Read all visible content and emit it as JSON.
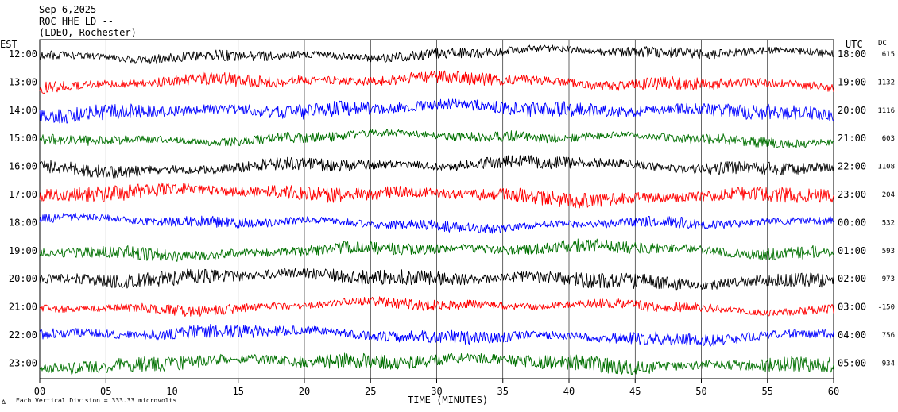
{
  "header": {
    "date": "Sep 6,2025",
    "station": "ROC HHE LD --",
    "location": "(LDEO, Rochester)"
  },
  "left_axis_label": "EST",
  "right_axis_label": "UTC",
  "dc_label": "DC",
  "footer": {
    "scale_note": "Each Vertical Division =  333.33 microvolts",
    "corner_mark": "∆"
  },
  "colors": {
    "trace_cycle": [
      "#000000",
      "#ff0000",
      "#0000ff",
      "#007000"
    ],
    "grid": "#000000",
    "background": "#ffffff"
  },
  "chart_data": {
    "type": "line",
    "title": "ROC HHE LD --",
    "xlabel": "TIME (MINUTES)",
    "ylabel": "",
    "x_ticks": [
      "00",
      "05",
      "10",
      "15",
      "20",
      "25",
      "30",
      "35",
      "40",
      "45",
      "50",
      "55",
      "60"
    ],
    "xlim": [
      0,
      60
    ],
    "series": [
      {
        "est": "12:00",
        "utc": "18:00",
        "dc": "615",
        "color": "#000000"
      },
      {
        "est": "13:00",
        "utc": "19:00",
        "dc": "1132",
        "color": "#ff0000"
      },
      {
        "est": "14:00",
        "utc": "20:00",
        "dc": "1116",
        "color": "#0000ff"
      },
      {
        "est": "15:00",
        "utc": "21:00",
        "dc": "603",
        "color": "#007000"
      },
      {
        "est": "16:00",
        "utc": "22:00",
        "dc": "1108",
        "color": "#000000"
      },
      {
        "est": "17:00",
        "utc": "23:00",
        "dc": "204",
        "color": "#ff0000"
      },
      {
        "est": "18:00",
        "utc": "00:00",
        "dc": "532",
        "color": "#0000ff"
      },
      {
        "est": "19:00",
        "utc": "01:00",
        "dc": "593",
        "color": "#007000"
      },
      {
        "est": "20:00",
        "utc": "02:00",
        "dc": "973",
        "color": "#000000"
      },
      {
        "est": "21:00",
        "utc": "03:00",
        "dc": "-150",
        "color": "#ff0000"
      },
      {
        "est": "22:00",
        "utc": "04:00",
        "dc": "756",
        "color": "#0000ff"
      },
      {
        "est": "23:00",
        "utc": "05:00",
        "dc": "934",
        "color": "#007000"
      }
    ],
    "grid": true
  }
}
